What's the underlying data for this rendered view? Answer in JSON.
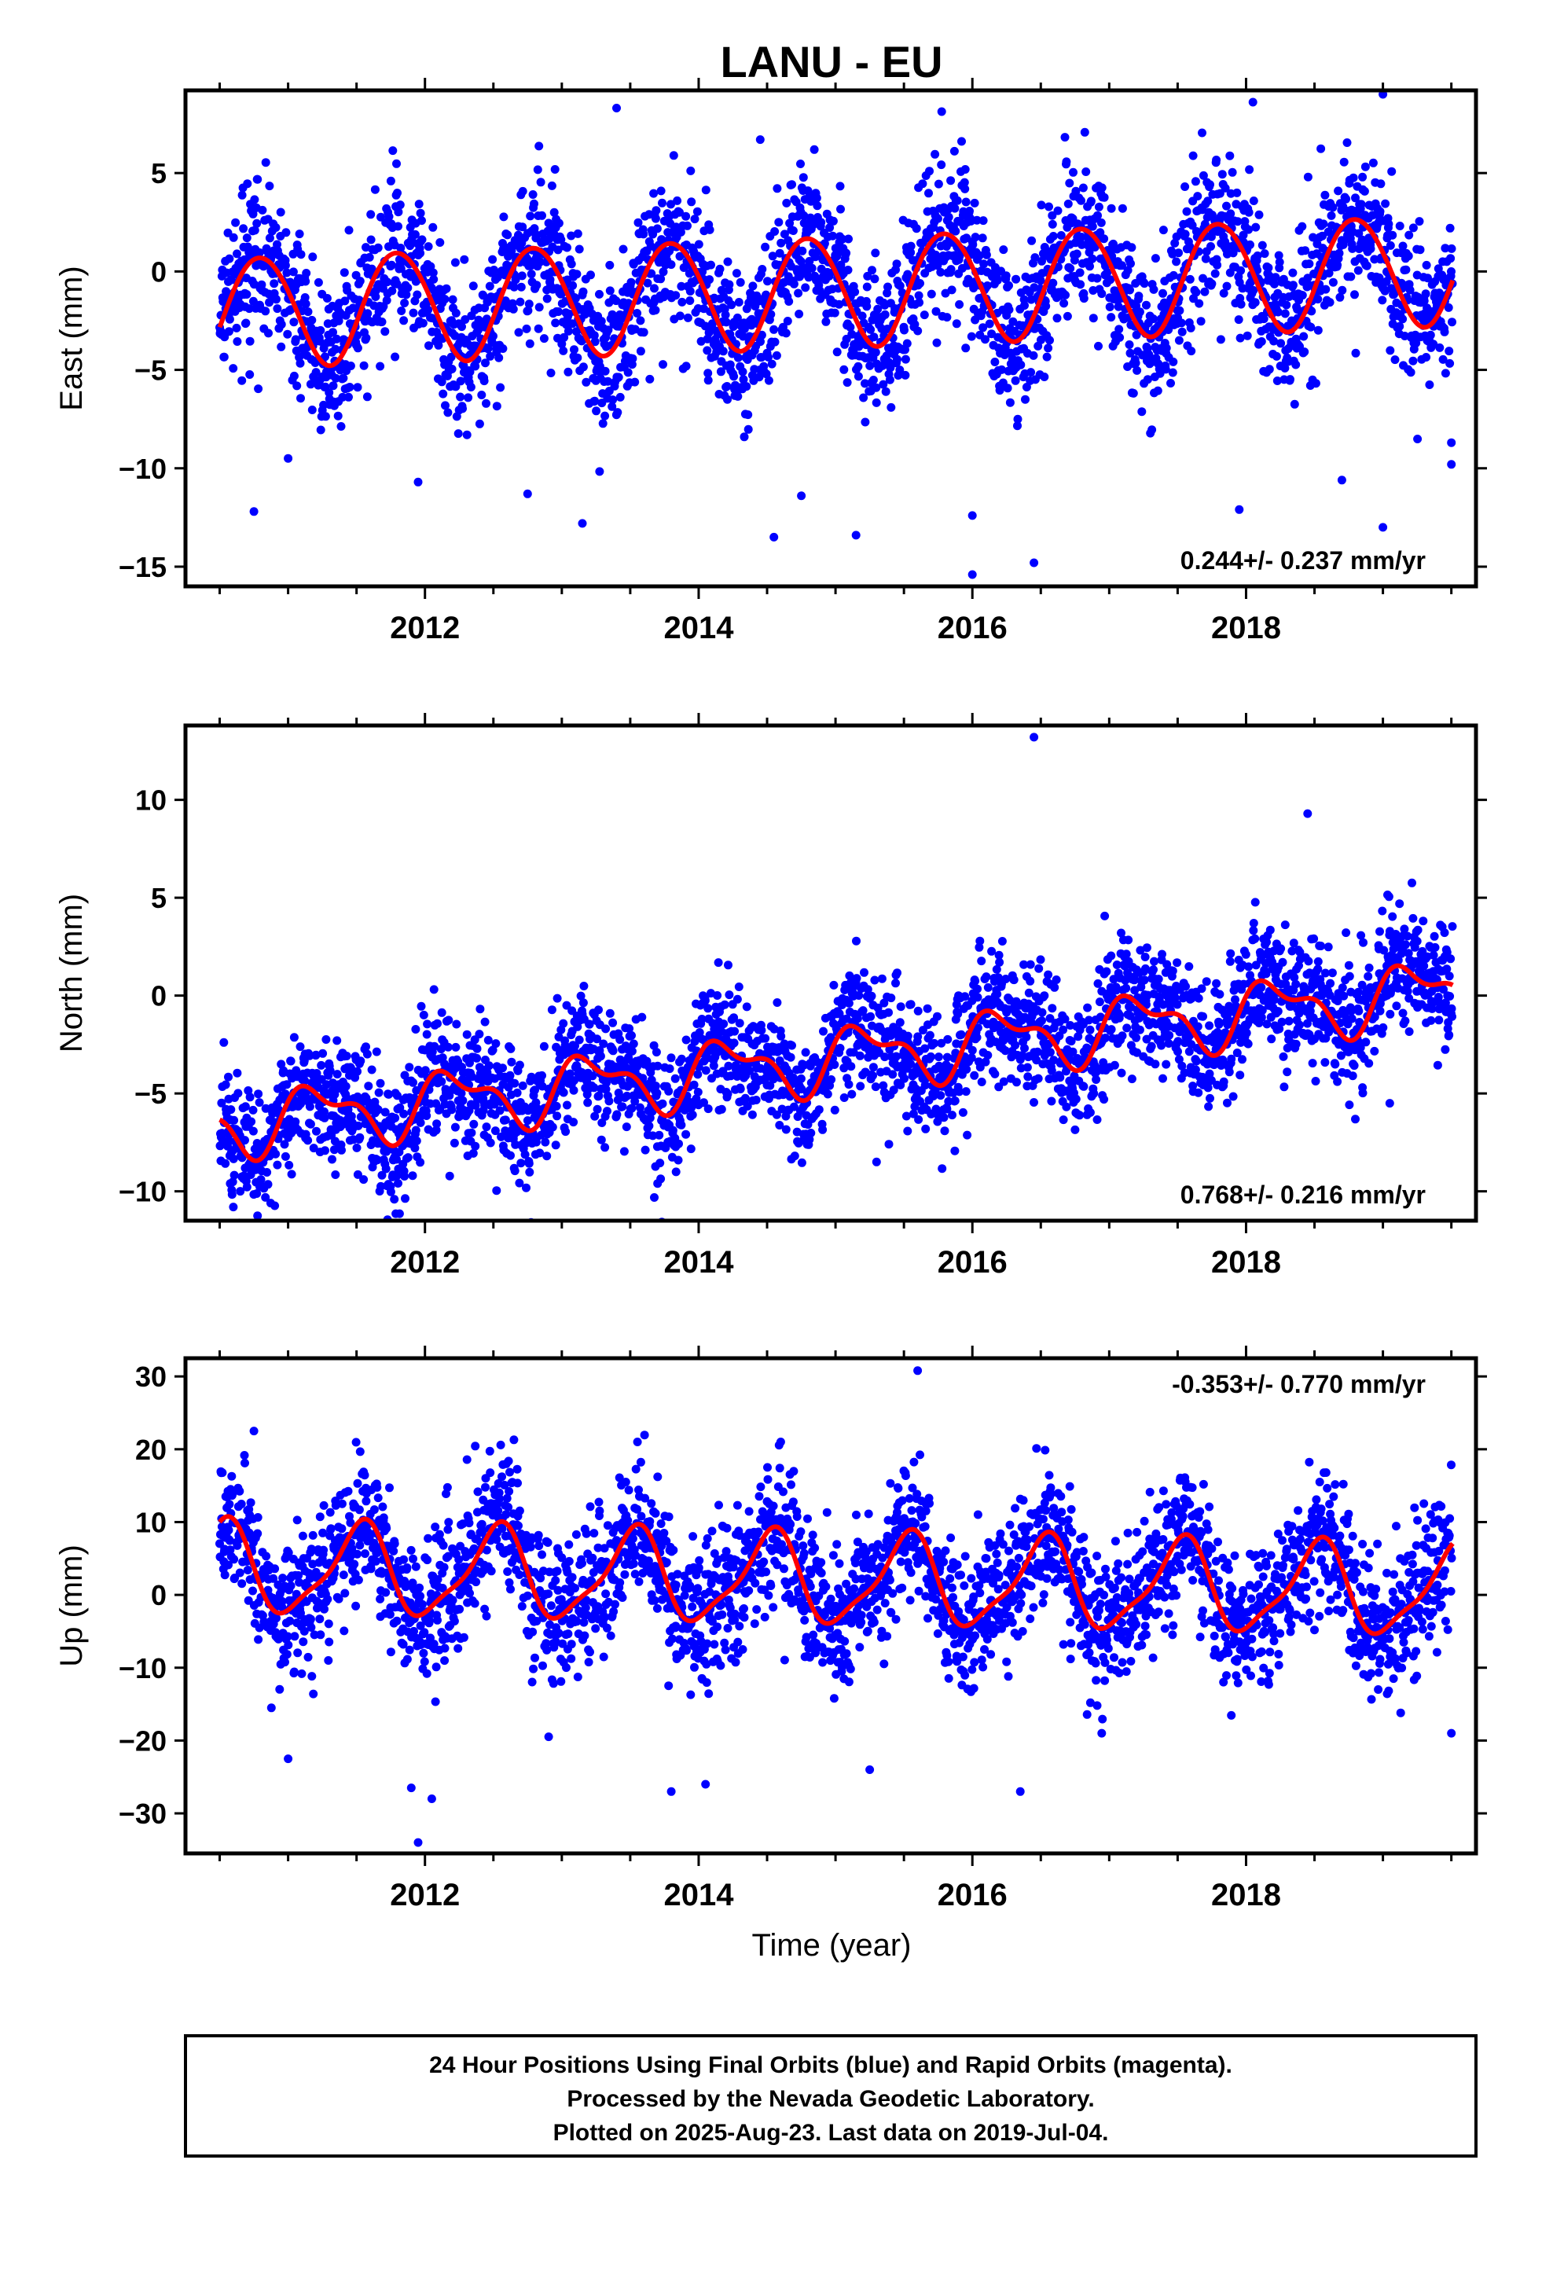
{
  "title": "LANU - EU",
  "colors": {
    "points": "#0000ff",
    "fit": "#ff0000",
    "frame": "#000000"
  },
  "x_axis_label": "Time (year)",
  "x_tick_labels": [
    "2012",
    "2014",
    "2016",
    "2018"
  ],
  "caption": [
    "24 Hour Positions Using Final Orbits (blue) and Rapid Orbits (magenta).",
    "Processed by the Nevada Geodetic Laboratory.",
    "Plotted on 2025-Aug-23. Last data on 2019-Jul-04."
  ],
  "chart_data": [
    {
      "type": "scatter",
      "ylabel": "East (mm)",
      "xlim": [
        2010.25,
        2019.68
      ],
      "ylim": [
        -16,
        9.2
      ],
      "xticks": [
        2012,
        2014,
        2016,
        2018
      ],
      "yticks": [
        5,
        0,
        -5,
        -10,
        -15
      ],
      "ytick_labels": [
        "5",
        "0",
        "−5",
        "−10",
        "−15"
      ],
      "rate_label": "0.244+/- 0.237 mm/yr",
      "rate_position": "bottom-right",
      "data_range": [
        2010.5,
        2019.51
      ],
      "fit": {
        "offset": -0.95,
        "trend": 0.244,
        "annual_amp": 2.8,
        "annual_phase": 2.83,
        "semi_amp": 0.15,
        "semi_phase": 0.5
      },
      "scatter_sigma": 1.9,
      "outliers": [
        [
          2010.75,
          -12.2
        ],
        [
          2011.0,
          -9.5
        ],
        [
          2011.95,
          -10.7
        ],
        [
          2012.75,
          -11.3
        ],
        [
          2013.15,
          -12.8
        ],
        [
          2013.4,
          8.3
        ],
        [
          2014.45,
          6.7
        ],
        [
          2014.55,
          -13.5
        ],
        [
          2014.75,
          -11.4
        ],
        [
          2015.15,
          -13.4
        ],
        [
          2016.0,
          -15.4
        ],
        [
          2016.0,
          -12.4
        ],
        [
          2016.45,
          -14.8
        ],
        [
          2017.95,
          -12.1
        ],
        [
          2018.05,
          8.6
        ],
        [
          2018.7,
          -10.6
        ],
        [
          2019.0,
          -13.0
        ],
        [
          2019.0,
          9.0
        ],
        [
          2019.5,
          -9.8
        ],
        [
          2019.5,
          -8.7
        ]
      ],
      "series": [
        {
          "name": "Final Orbits",
          "color": "#0000ff"
        }
      ]
    },
    {
      "type": "scatter",
      "ylabel": "North (mm)",
      "xlim": [
        2010.25,
        2019.68
      ],
      "ylim": [
        -11.5,
        13.8
      ],
      "xticks": [
        2012,
        2014,
        2016,
        2018
      ],
      "yticks": [
        10,
        5,
        0,
        -5,
        -10
      ],
      "ytick_labels": [
        "10",
        "5",
        "0",
        "−5",
        "−10"
      ],
      "rate_label": "0.768+/- 0.216 mm/yr",
      "rate_position": "bottom-right",
      "data_range": [
        2010.5,
        2019.51
      ],
      "fit": {
        "offset": -3.2,
        "trend": 0.768,
        "annual_amp": 1.4,
        "annual_phase": 0.2,
        "semi_amp": 0.7,
        "semi_phase": 1.0
      },
      "scatter_sigma": 1.6,
      "outliers": [
        [
          2010.6,
          -10.8
        ],
        [
          2010.65,
          -10.0
        ],
        [
          2013.7,
          -9.6
        ],
        [
          2015.3,
          -8.5
        ],
        [
          2016.45,
          13.2
        ],
        [
          2016.95,
          -5.1
        ],
        [
          2018.45,
          9.3
        ],
        [
          2019.05,
          -5.5
        ]
      ],
      "series": [
        {
          "name": "Final Orbits",
          "color": "#0000ff"
        }
      ]
    },
    {
      "type": "scatter",
      "ylabel": "Up (mm)",
      "xlabel": "Time (year)",
      "xlim": [
        2010.25,
        2019.68
      ],
      "ylim": [
        -35.5,
        32.5
      ],
      "xticks": [
        2012,
        2014,
        2016,
        2018
      ],
      "yticks": [
        30,
        20,
        10,
        0,
        -10,
        -20,
        -30
      ],
      "ytick_labels": [
        "30",
        "20",
        "10",
        "0",
        "−10",
        "−20",
        "−30"
      ],
      "rate_label": "-0.353+/- 0.770 mm/yr",
      "rate_position": "top-right",
      "data_range": [
        2010.5,
        2019.51
      ],
      "fit": {
        "offset": 2.0,
        "trend": -0.353,
        "annual_amp": 6.0,
        "annual_phase": -1.7,
        "semi_amp": 1.6,
        "semi_phase": 0.3
      },
      "scatter_sigma": 4.8,
      "outliers": [
        [
          2010.75,
          22.5
        ],
        [
          2011.0,
          -22.5
        ],
        [
          2011.95,
          -34.0
        ],
        [
          2012.05,
          -28.0
        ],
        [
          2011.9,
          -26.5
        ],
        [
          2012.65,
          21.3
        ],
        [
          2013.8,
          -27.0
        ],
        [
          2014.05,
          -26.0
        ],
        [
          2014.6,
          21.0
        ],
        [
          2015.25,
          -24.0
        ],
        [
          2015.6,
          30.8
        ],
        [
          2016.35,
          -27.0
        ],
        [
          2019.5,
          -19.0
        ]
      ],
      "series": [
        {
          "name": "Final Orbits",
          "color": "#0000ff"
        }
      ]
    }
  ]
}
